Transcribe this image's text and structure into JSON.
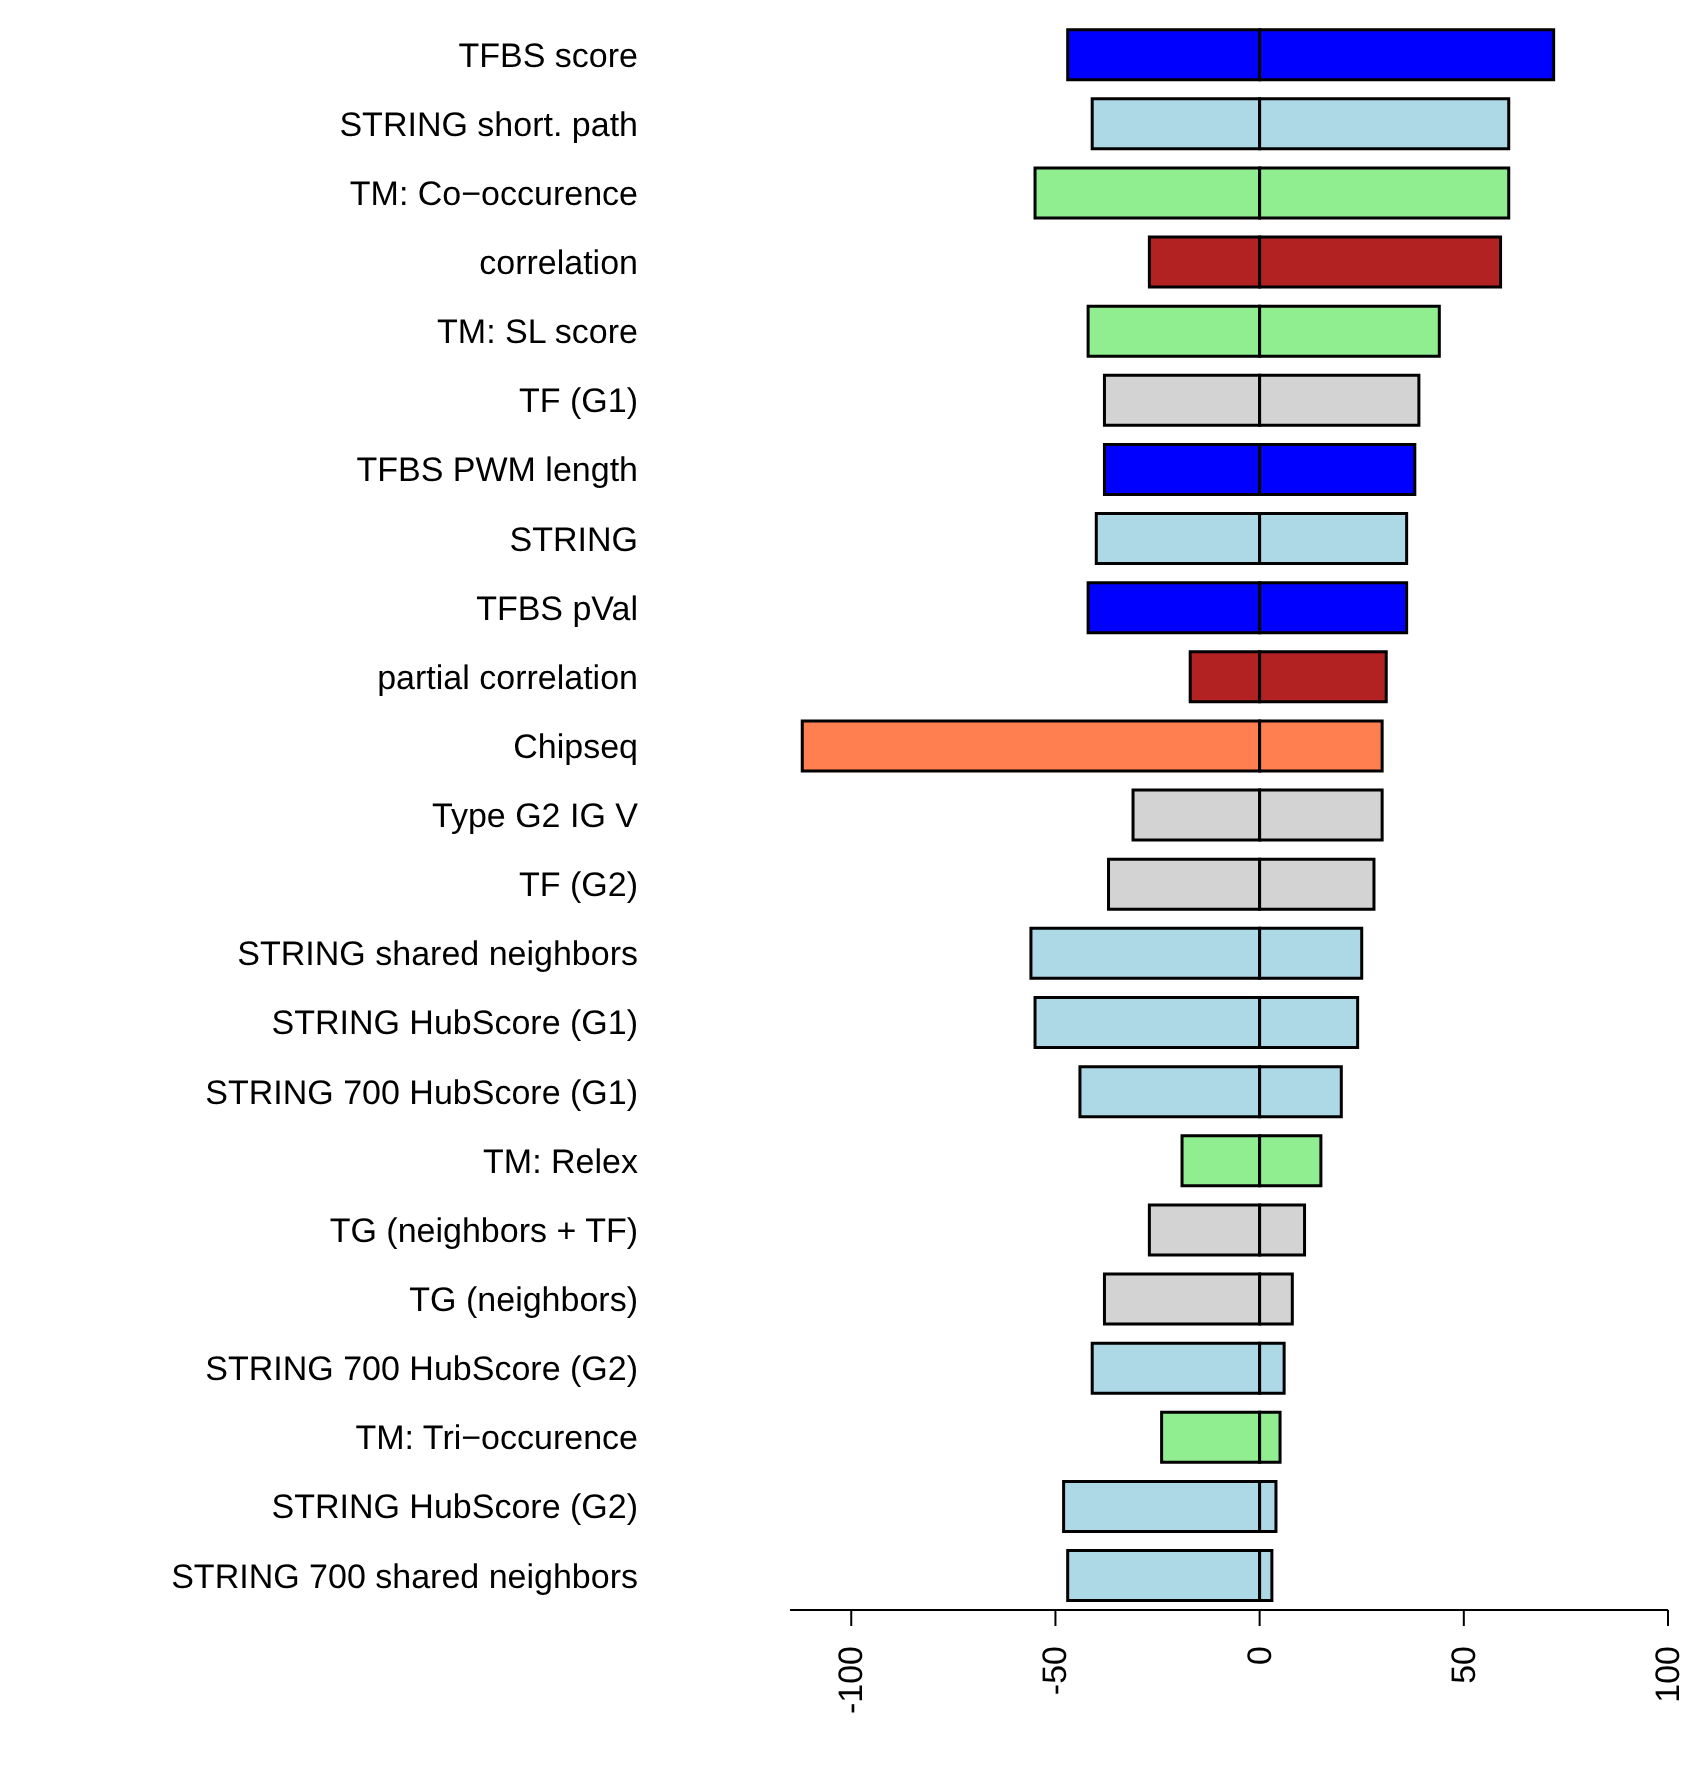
{
  "chart_data": {
    "type": "bar",
    "orientation": "horizontal",
    "stacked": true,
    "categories": [
      "TFBS score",
      "STRING short. path",
      "TM: Co−occurence",
      "correlation",
      "TM: SL score",
      "TF (G1)",
      "TFBS PWM length",
      "STRING",
      "TFBS pVal",
      "partial correlation",
      "Chipseq",
      "Type G2 IG V",
      "TF (G2)",
      "STRING shared neighbors",
      "STRING HubScore (G1)",
      "STRING 700 HubScore (G1)",
      "TM: Relex",
      "TG (neighbors + TF)",
      "TG (neighbors)",
      "STRING 700 HubScore (G2)",
      "TM: Tri−occurence",
      "STRING HubScore (G2)",
      "STRING 700 shared neighbors"
    ],
    "series": [
      {
        "values": [
          -47,
          -41,
          -55,
          -27,
          -42,
          -38,
          -38,
          -40,
          -42,
          -17,
          -112,
          -31,
          -37,
          -56,
          -55,
          -44,
          -19,
          -27,
          -38,
          -41,
          -24,
          -48,
          -47
        ],
        "colors": [
          "#0000ff",
          "#add8e6",
          "#90ee90",
          "#b22222",
          "#90ee90",
          "#d3d3d3",
          "#0000ff",
          "#add8e6",
          "#0000ff",
          "#b22222",
          "#ff7f50",
          "#d3d3d3",
          "#d3d3d3",
          "#add8e6",
          "#add8e6",
          "#add8e6",
          "#90ee90",
          "#d3d3d3",
          "#d3d3d3",
          "#add8e6",
          "#90ee90",
          "#add8e6",
          "#add8e6"
        ]
      },
      {
        "values": [
          72,
          61,
          61,
          59,
          44,
          39,
          38,
          36,
          36,
          31,
          30,
          30,
          28,
          25,
          24,
          20,
          15,
          11,
          8,
          6,
          5,
          4,
          3
        ],
        "colors": [
          "#0000ff",
          "#add8e6",
          "#90ee90",
          "#b22222",
          "#90ee90",
          "#d3d3d3",
          "#0000ff",
          "#add8e6",
          "#0000ff",
          "#b22222",
          "#ff7f50",
          "#d3d3d3",
          "#d3d3d3",
          "#add8e6",
          "#add8e6",
          "#add8e6",
          "#90ee90",
          "#d3d3d3",
          "#d3d3d3",
          "#add8e6",
          "#90ee90",
          "#add8e6",
          "#add8e6"
        ]
      }
    ],
    "xlim": [
      -115,
      100
    ],
    "xticks": [
      -100,
      -50,
      0,
      50,
      100
    ]
  }
}
